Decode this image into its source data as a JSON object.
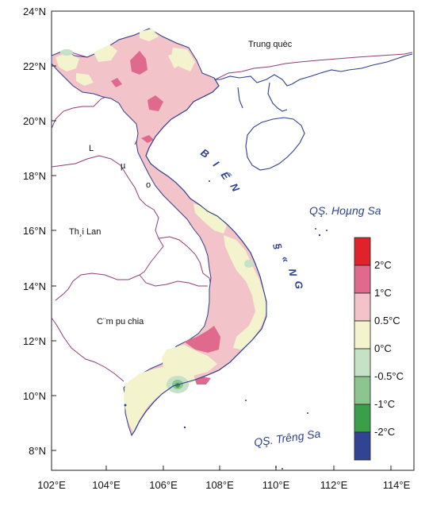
{
  "axes": {
    "x_ticks": [
      "102°E",
      "104°E",
      "106°E",
      "108°E",
      "110°E",
      "112°E",
      "114°E"
    ],
    "y_ticks": [
      "24°N",
      "22°N",
      "20°N",
      "18°N",
      "16°N",
      "14°N",
      "12°N",
      "10°N",
      "8°N"
    ]
  },
  "labels": {
    "china": "Trung quèc",
    "laos_letters": [
      "L",
      "µ",
      "o"
    ],
    "thailand": "Th¸i Lan",
    "cambodia": "C¨m pu chia",
    "sea_letters": [
      "B",
      "I",
      "Ể",
      "N",
      "§",
      "«",
      "N",
      "G"
    ],
    "paracel": "QŞ. Hoµng Sa",
    "spratly": "QŞ. Tr­êng Sa"
  },
  "legend": {
    "labels": [
      "2°C",
      "1°C",
      "0.5°C",
      "0°C",
      "-0.5°C",
      "-1°C",
      "-2°C"
    ],
    "colors": [
      "#e0232b",
      "#e06a8e",
      "#f2c3c8",
      "#f3f4cd",
      "#c5e2c6",
      "#8dc48f",
      "#3a9f48",
      "#324393"
    ]
  },
  "colors": {
    "border": "#8e3d7a",
    "coast": "#2e3f8f",
    "land_base": "#f2c3c8"
  }
}
